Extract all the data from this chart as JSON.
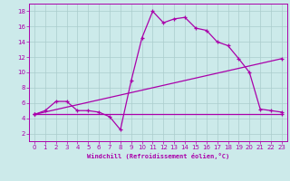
{
  "xlabel": "Windchill (Refroidissement éolien,°C)",
  "background_color": "#cceaea",
  "grid_color": "#aacccc",
  "line_color": "#aa00aa",
  "xlim": [
    -0.5,
    23.5
  ],
  "ylim": [
    1.0,
    19.0
  ],
  "xticks": [
    0,
    1,
    2,
    3,
    4,
    5,
    6,
    7,
    8,
    9,
    10,
    11,
    12,
    13,
    14,
    15,
    16,
    17,
    18,
    19,
    20,
    21,
    22,
    23
  ],
  "yticks": [
    2,
    4,
    6,
    8,
    10,
    12,
    14,
    16,
    18
  ],
  "curve1_x": [
    0,
    1,
    2,
    3,
    4,
    5,
    6,
    7,
    8,
    9,
    10,
    11,
    12,
    13,
    14,
    15,
    16,
    17,
    18,
    19,
    20,
    21,
    22,
    23
  ],
  "curve1_y": [
    4.5,
    5.0,
    6.2,
    6.2,
    5.0,
    5.0,
    4.8,
    4.2,
    2.5,
    8.9,
    14.5,
    18.0,
    16.5,
    17.0,
    17.2,
    15.8,
    15.5,
    14.0,
    13.5,
    11.8,
    10.0,
    5.2,
    5.0,
    4.8
  ],
  "curve2_x": [
    0,
    23
  ],
  "curve2_y": [
    4.5,
    11.8
  ],
  "curve3_x": [
    0,
    23
  ],
  "curve3_y": [
    4.5,
    4.5
  ]
}
